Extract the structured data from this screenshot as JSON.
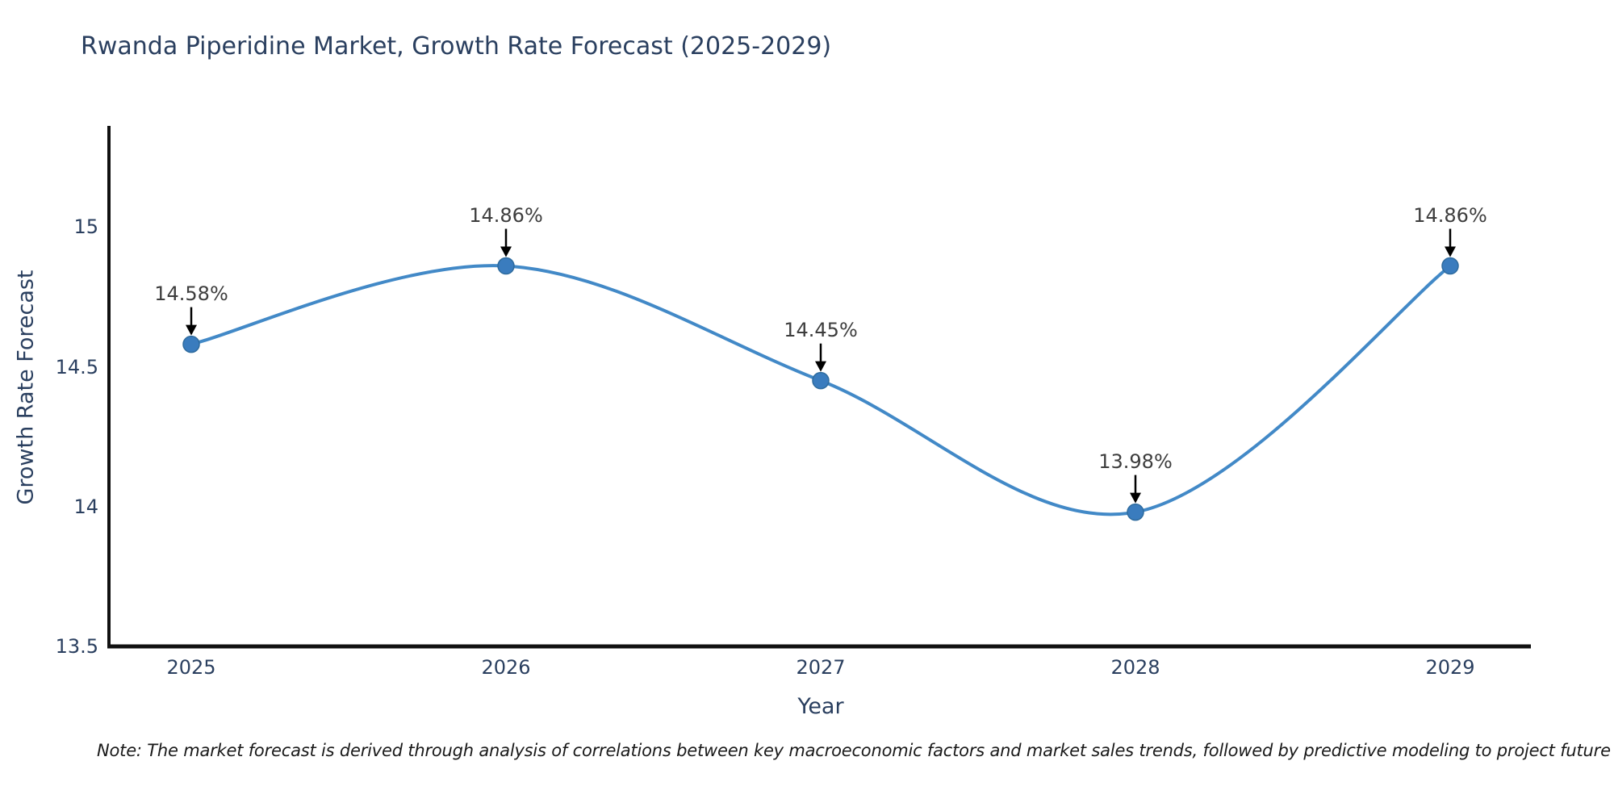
{
  "page": {
    "background": "#ffffff"
  },
  "chart_data": {
    "type": "line",
    "title": "Rwanda Piperidine Market, Growth Rate Forecast (2025-2029)",
    "xlabel": "Year",
    "ylabel": "Growth Rate Forecast",
    "x": [
      "2025",
      "2026",
      "2027",
      "2028",
      "2029"
    ],
    "values": [
      14.58,
      14.86,
      14.45,
      13.98,
      14.86
    ],
    "labels": [
      "14.58%",
      "14.86%",
      "14.45%",
      "13.98%",
      "14.86%"
    ],
    "y_tick_labels": [
      "15",
      "14.5",
      "14",
      "13.5"
    ],
    "y_tick_values": [
      15,
      14.5,
      14,
      13.5
    ],
    "ylim": [
      13.5,
      15.36
    ],
    "grid": false,
    "legend_position": "none",
    "line_shape": "spline",
    "line_color": "#4289C7",
    "marker_color": "#3A7CBE",
    "marker_edge_color": "#2E6B9E",
    "arrow_color": "#000000",
    "axis_color": "#111111",
    "text_color": "#2a3f5f",
    "note": "Note: The market forecast is derived through analysis of correlations between key macroeconomic factors and market sales trends, followed by predictive modeling to project future sal"
  }
}
